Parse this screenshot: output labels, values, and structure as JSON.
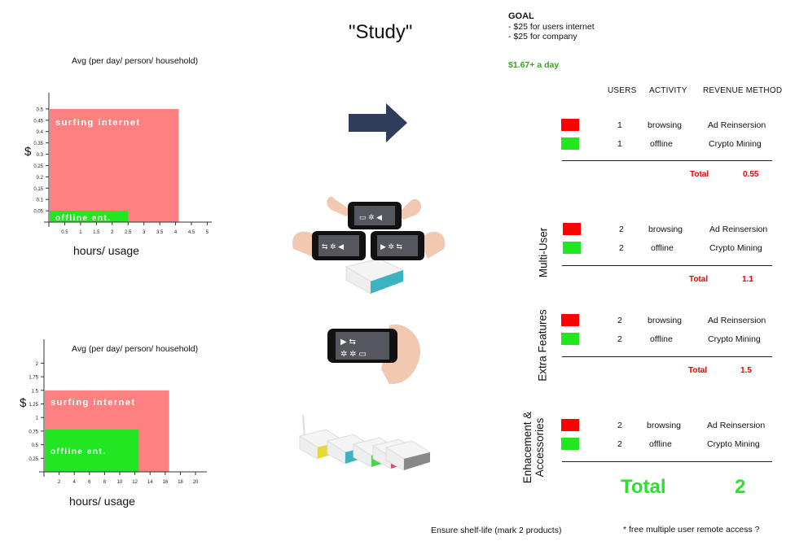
{
  "title": "\"Study\"",
  "goal": {
    "heading": "GOAL",
    "lines": [
      "- $25 for users internet",
      "- $25 for company"
    ],
    "daily": "$1.67+  a day"
  },
  "chart_data": [
    {
      "type": "bar",
      "title": "Avg (per day/ person/ household)",
      "ylabel": "$",
      "xlabel": "hours/ usage",
      "x_ticks": [
        "0.5",
        "1",
        "1.5",
        "2",
        "2.5",
        "3",
        "3.5",
        "4",
        "4.5",
        "5"
      ],
      "y_ticks": [
        "0.5",
        "0.45",
        "0.4",
        "0.35",
        "0.3",
        "0.25",
        "0.2",
        "0.15",
        "0.1",
        "0.05"
      ],
      "xlim": [
        0,
        5.4
      ],
      "ylim": [
        0,
        0.55
      ],
      "series": [
        {
          "name": "surfing internet",
          "x_end": 4.1,
          "value": 0.5,
          "color": "#ff8080"
        },
        {
          "name": "offline ent.",
          "x_end": 2.5,
          "value": 0.05,
          "color": "#22e622"
        }
      ]
    },
    {
      "type": "bar",
      "title": "Avg (per day/ person/ household)",
      "ylabel": "$",
      "xlabel": "hours/ usage",
      "x_ticks": [
        "2",
        "4",
        "6",
        "8",
        "10",
        "12",
        "14",
        "16",
        "18",
        "20"
      ],
      "y_ticks": [
        "2",
        "1.75",
        "1.5",
        "1.25",
        "1",
        "0.75",
        "0.5",
        "0.25"
      ],
      "xlim": [
        0,
        21.5
      ],
      "ylim": [
        0,
        2.35
      ],
      "series": [
        {
          "name": "surfing internet",
          "x_end": 16.5,
          "value": 1.5,
          "color": "#ff8080"
        },
        {
          "name": "offline ent.",
          "x_end": 12.5,
          "value": 0.78,
          "color": "#22e622"
        }
      ]
    }
  ],
  "table": {
    "headers": [
      "USERS",
      "ACTIVITY",
      "REVENUE METHOD"
    ],
    "swatch_colors": [
      "#ff0000",
      "#22e622"
    ],
    "groups": [
      {
        "side_label": "",
        "rows": [
          {
            "users": "1",
            "activity": "browsing",
            "method": "Ad Reinsersion"
          },
          {
            "users": "1",
            "activity": "offline",
            "method": "Crypto Mining"
          }
        ],
        "total_label": "Total",
        "total_value": "0.55"
      },
      {
        "side_label": "Multi-User",
        "rows": [
          {
            "users": "2",
            "activity": "browsing",
            "method": "Ad Reinsersion"
          },
          {
            "users": "2",
            "activity": "offline",
            "method": "Crypto Mining"
          }
        ],
        "total_label": "Total",
        "total_value": "1.1"
      },
      {
        "side_label": "Extra Features",
        "rows": [
          {
            "users": "2",
            "activity": "browsing",
            "method": "Ad Reinsersion"
          },
          {
            "users": "2",
            "activity": "offline",
            "method": "Crypto Mining"
          }
        ],
        "total_label": "Total",
        "total_value": "1.5"
      },
      {
        "side_label_lines": [
          "Enhacement &",
          "Accessories"
        ],
        "rows": [
          {
            "users": "2",
            "activity": "browsing",
            "method": "Ad Reinsersion"
          },
          {
            "users": "2",
            "activity": "offline",
            "method": "Crypto Mining"
          }
        ],
        "total_label": "Total",
        "total_value": "2"
      }
    ]
  },
  "footer": {
    "left": "Ensure shelf-life (mark 2 products)",
    "right": "* free multiple user remote access ?"
  },
  "icons": [
    "arrow-right-icon",
    "hands-holding-phones-image",
    "hand-holding-phone-image",
    "router-devices-image"
  ]
}
